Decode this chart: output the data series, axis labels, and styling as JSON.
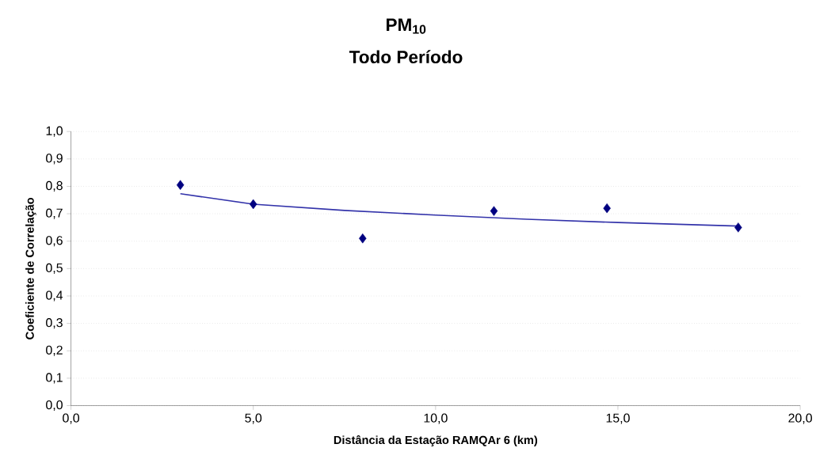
{
  "chart_data": {
    "type": "scatter",
    "title": "PM$_{10}$",
    "subtitle": "Todo Período",
    "xlabel": "Distância da Estação RAMQAr 6 (km)",
    "ylabel": "Coeficiente de Correlação",
    "xlim": [
      0,
      20
    ],
    "ylim": [
      0,
      1
    ],
    "xticks": [
      {
        "value": 0,
        "label": "0,0"
      },
      {
        "value": 5,
        "label": "5,0"
      },
      {
        "value": 10,
        "label": "10,0"
      },
      {
        "value": 15,
        "label": "15,0"
      },
      {
        "value": 20,
        "label": "20,0"
      }
    ],
    "yticks": [
      {
        "value": 0,
        "label": "0,0"
      },
      {
        "value": 0.1,
        "label": "0,1"
      },
      {
        "value": 0.2,
        "label": "0,2"
      },
      {
        "value": 0.3,
        "label": "0,3"
      },
      {
        "value": 0.4,
        "label": "0,4"
      },
      {
        "value": 0.5,
        "label": "0,5"
      },
      {
        "value": 0.6,
        "label": "0,6"
      },
      {
        "value": 0.7,
        "label": "0,7"
      },
      {
        "value": 0.8,
        "label": "0,8"
      },
      {
        "value": 0.9,
        "label": "0,9"
      },
      {
        "value": 1,
        "label": "1,0"
      }
    ],
    "grid": "y",
    "series": [
      {
        "color": "#000080",
        "marker": "diamond",
        "x": [
          3.0,
          5.0,
          8.0,
          11.6,
          14.7,
          18.3
        ],
        "values": [
          0.805,
          0.735,
          0.61,
          0.71,
          0.72,
          0.65
        ]
      },
      {
        "type": "line",
        "color": "#3333aa",
        "marker": "none",
        "x": [
          3.0,
          5.0,
          7.5,
          10.0,
          12.5,
          15.0,
          18.3
        ],
        "values": [
          0.773,
          0.735,
          0.712,
          0.695,
          0.68,
          0.668,
          0.655
        ]
      }
    ]
  }
}
